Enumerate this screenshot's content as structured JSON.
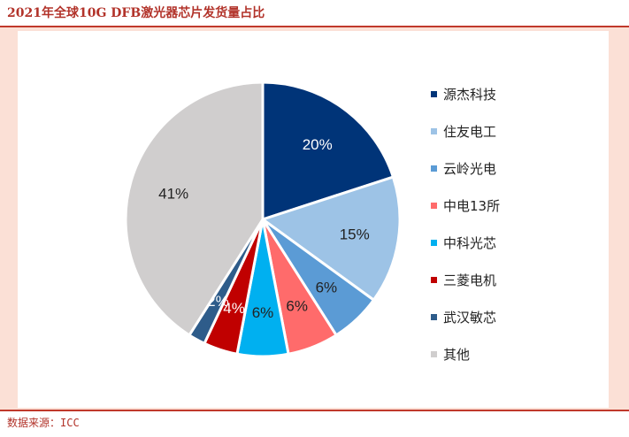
{
  "title": "2021年全球10G DFB激光器芯片发货量占比",
  "source": "数据来源：ICC",
  "chart_data": {
    "type": "pie",
    "title": "2021年全球10G DFB激光器芯片发货量占比",
    "categories": [
      "源杰科技",
      "住友电工",
      "云岭光电",
      "中电13所",
      "中科光芯",
      "三菱电机",
      "武汉敏芯",
      "其他"
    ],
    "values": [
      20,
      15,
      6,
      6,
      6,
      4,
      2,
      41
    ],
    "labels": [
      "20%",
      "15%",
      "6%",
      "6%",
      "6%",
      "4%",
      "2%",
      "41%"
    ],
    "colors": [
      "#003478",
      "#9dc3e6",
      "#5b9bd5",
      "#ff6b6b",
      "#00b0f0",
      "#c00000",
      "#2e5c8a",
      "#d0cece"
    ],
    "label_colors": [
      "#ffffff",
      "#222222",
      "#222222",
      "#222222",
      "#222222",
      "#ffffff",
      "#ffffff",
      "#222222"
    ],
    "legend_position": "right",
    "start_angle_deg": 0,
    "direction": "clockwise"
  }
}
